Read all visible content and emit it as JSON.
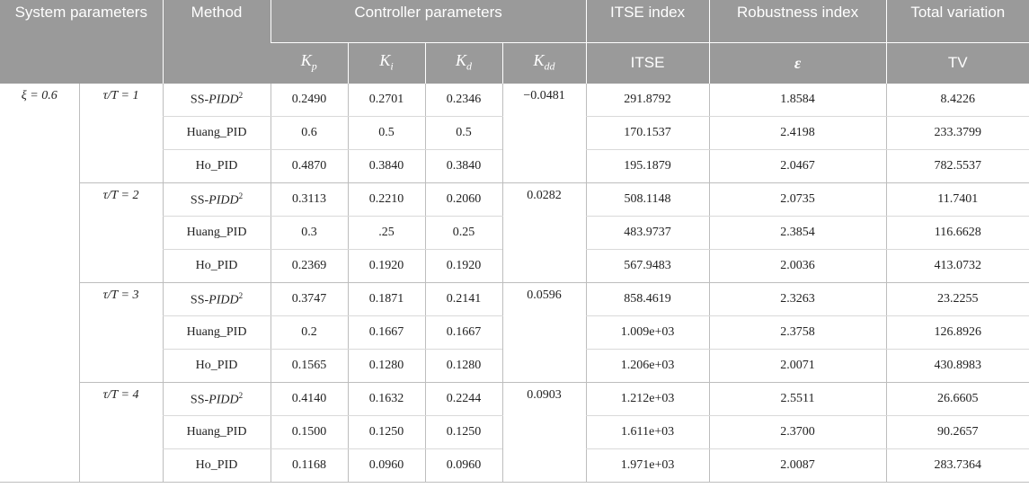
{
  "header": {
    "system_parameters": "System parameters",
    "method": "Method",
    "controller_parameters": "Controller parameters",
    "itse_index": "ITSE index",
    "robustness_index": "Robustness index",
    "total_variation": "Total variation",
    "kp_base": "K",
    "kp_sub": "p",
    "ki_base": "K",
    "ki_sub": "i",
    "kd_base": "K",
    "kd_sub": "d",
    "kdd_base": "K",
    "kdd_sub": "dd",
    "itse": "ITSE",
    "epsilon": "ε",
    "tv": "TV"
  },
  "system": {
    "xi": "ξ = 0.6"
  },
  "groups": [
    {
      "tau": "τ/T = 1",
      "kdd": "−0.0481",
      "rows": [
        {
          "method": "SS-PIDD",
          "sup": "2",
          "kp": "0.2490",
          "ki": "0.2701",
          "kd": "0.2346",
          "itse": "291.8792",
          "eps": "1.8584",
          "tv": "8.4226"
        },
        {
          "method": "Huang_PID",
          "sup": "",
          "kp": "0.6",
          "ki": "0.5",
          "kd": "0.5",
          "itse": "170.1537",
          "eps": "2.4198",
          "tv": "233.3799"
        },
        {
          "method": "Ho_PID",
          "sup": "",
          "kp": "0.4870",
          "ki": "0.3840",
          "kd": "0.3840",
          "itse": "195.1879",
          "eps": "2.0467",
          "tv": "782.5537"
        }
      ]
    },
    {
      "tau": "τ/T = 2",
      "kdd": "0.0282",
      "rows": [
        {
          "method": "SS-PIDD",
          "sup": "2",
          "kp": "0.3113",
          "ki": "0.2210",
          "kd": "0.2060",
          "itse": "508.1148",
          "eps": "2.0735",
          "tv": "11.7401"
        },
        {
          "method": "Huang_PID",
          "sup": "",
          "kp": "0.3",
          "ki": ".25",
          "kd": "0.25",
          "itse": "483.9737",
          "eps": "2.3854",
          "tv": "116.6628"
        },
        {
          "method": "Ho_PID",
          "sup": "",
          "kp": "0.2369",
          "ki": "0.1920",
          "kd": "0.1920",
          "itse": "567.9483",
          "eps": "2.0036",
          "tv": "413.0732"
        }
      ]
    },
    {
      "tau": "τ/T = 3",
      "kdd": "0.0596",
      "rows": [
        {
          "method": "SS-PIDD",
          "sup": "2",
          "kp": "0.3747",
          "ki": "0.1871",
          "kd": "0.2141",
          "itse": "858.4619",
          "eps": "2.3263",
          "tv": "23.2255"
        },
        {
          "method": "Huang_PID",
          "sup": "",
          "kp": "0.2",
          "ki": "0.1667",
          "kd": "0.1667",
          "itse": "1.009e+03",
          "eps": "2.3758",
          "tv": "126.8926"
        },
        {
          "method": "Ho_PID",
          "sup": "",
          "kp": "0.1565",
          "ki": "0.1280",
          "kd": "0.1280",
          "itse": "1.206e+03",
          "eps": "2.0071",
          "tv": "430.8983"
        }
      ]
    },
    {
      "tau": "τ/T = 4",
      "kdd": "0.0903",
      "rows": [
        {
          "method": "SS-PIDD",
          "sup": "2",
          "kp": "0.4140",
          "ki": "0.1632",
          "kd": "0.2244",
          "itse": "1.212e+03",
          "eps": "2.5511",
          "tv": "26.6605"
        },
        {
          "method": "Huang_PID",
          "sup": "",
          "kp": "0.1500",
          "ki": "0.1250",
          "kd": "0.1250",
          "itse": "1.611e+03",
          "eps": "2.3700",
          "tv": "90.2657"
        },
        {
          "method": "Ho_PID",
          "sup": "",
          "kp": "0.1168",
          "ki": "0.0960",
          "kd": "0.0960",
          "itse": "1.971e+03",
          "eps": "2.0087",
          "tv": "283.7364"
        }
      ]
    }
  ]
}
